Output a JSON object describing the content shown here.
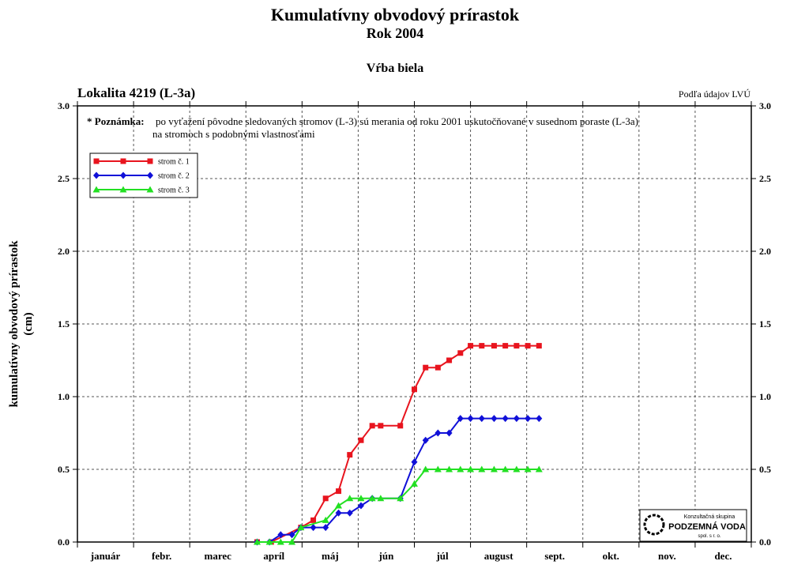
{
  "titles": {
    "main": "Kumulatívny obvodový prírastok",
    "year": "Rok 2004",
    "species": "Vŕba biela"
  },
  "locality": "Lokalita 4219 (L-3a)",
  "source": "Podľa údajov LVÚ",
  "note": {
    "prefix": "* Poznámka:",
    "line1": "po vyťažení pôvodne sledovaných stromov (L-3) sú merania od roku 2001 uskutočňované v susednom poraste (L-3a)",
    "line2": "na stromoch s podobnými vlastnosťami"
  },
  "logo": {
    "line1": "Konzultačná skupina",
    "line2": "PODZEMNÁ VODA",
    "line3": "spol. s r. o."
  },
  "colors": {
    "s1": "#e8141e",
    "s2": "#1010d8",
    "s3": "#22e022"
  },
  "chart_data": {
    "type": "line",
    "ylabel": "kumulatívny obvodový prírastok (cm)",
    "ylabel_line1": "kumulatívny obvodový prírastok",
    "ylabel_line2": "(cm)",
    "ylim": [
      0,
      3
    ],
    "yticks": [
      0.0,
      0.5,
      1.0,
      1.5,
      2.0,
      2.5,
      3.0
    ],
    "ytick_labels": [
      "0.0",
      "0.5",
      "1.0",
      "1.5",
      "2.0",
      "2.5",
      "3.0"
    ],
    "months": [
      "január",
      "febr.",
      "marec",
      "apríl",
      "máj",
      "jún",
      "júl",
      "august",
      "sept.",
      "okt.",
      "nov.",
      "dec."
    ],
    "x_unit": "month index (0 = 1 January, 12 = 31 December)",
    "grid": true,
    "legend_position": "top-left",
    "series": [
      {
        "name": "strom č. 1",
        "color": "#e8141e",
        "marker": "square",
        "points": [
          [
            3.2,
            0.0
          ],
          [
            3.45,
            0.0
          ],
          [
            3.98,
            0.1
          ],
          [
            4.2,
            0.15
          ],
          [
            4.42,
            0.3
          ],
          [
            4.65,
            0.35
          ],
          [
            4.85,
            0.6
          ],
          [
            5.05,
            0.7
          ],
          [
            5.25,
            0.8
          ],
          [
            5.4,
            0.8
          ],
          [
            5.75,
            0.8
          ],
          [
            6.0,
            1.05
          ],
          [
            6.2,
            1.2
          ],
          [
            6.42,
            1.2
          ],
          [
            6.62,
            1.25
          ],
          [
            6.82,
            1.3
          ],
          [
            7.0,
            1.35
          ],
          [
            7.2,
            1.35
          ],
          [
            7.42,
            1.35
          ],
          [
            7.62,
            1.35
          ],
          [
            7.82,
            1.35
          ],
          [
            8.02,
            1.35
          ],
          [
            8.22,
            1.35
          ]
        ]
      },
      {
        "name": "strom č. 2",
        "color": "#1010d8",
        "marker": "diamond",
        "points": [
          [
            3.2,
            0.0
          ],
          [
            3.42,
            0.0
          ],
          [
            3.62,
            0.05
          ],
          [
            3.82,
            0.05
          ],
          [
            3.98,
            0.1
          ],
          [
            4.2,
            0.1
          ],
          [
            4.42,
            0.1
          ],
          [
            4.65,
            0.2
          ],
          [
            4.85,
            0.2
          ],
          [
            5.05,
            0.25
          ],
          [
            5.25,
            0.3
          ],
          [
            5.75,
            0.3
          ],
          [
            6.0,
            0.55
          ],
          [
            6.2,
            0.7
          ],
          [
            6.42,
            0.75
          ],
          [
            6.62,
            0.75
          ],
          [
            6.82,
            0.85
          ],
          [
            7.0,
            0.85
          ],
          [
            7.2,
            0.85
          ],
          [
            7.42,
            0.85
          ],
          [
            7.62,
            0.85
          ],
          [
            7.82,
            0.85
          ],
          [
            8.02,
            0.85
          ],
          [
            8.22,
            0.85
          ]
        ]
      },
      {
        "name": "strom č. 3",
        "color": "#22e022",
        "marker": "triangle",
        "points": [
          [
            3.2,
            0.0
          ],
          [
            3.42,
            0.0
          ],
          [
            3.62,
            0.0
          ],
          [
            3.82,
            0.0
          ],
          [
            3.98,
            0.1
          ],
          [
            4.42,
            0.15
          ],
          [
            4.65,
            0.25
          ],
          [
            4.85,
            0.3
          ],
          [
            5.05,
            0.3
          ],
          [
            5.25,
            0.3
          ],
          [
            5.4,
            0.3
          ],
          [
            5.75,
            0.3
          ],
          [
            6.0,
            0.4
          ],
          [
            6.2,
            0.5
          ],
          [
            6.42,
            0.5
          ],
          [
            6.62,
            0.5
          ],
          [
            6.82,
            0.5
          ],
          [
            7.0,
            0.5
          ],
          [
            7.2,
            0.5
          ],
          [
            7.42,
            0.5
          ],
          [
            7.62,
            0.5
          ],
          [
            7.82,
            0.5
          ],
          [
            8.02,
            0.5
          ],
          [
            8.22,
            0.5
          ]
        ]
      }
    ]
  }
}
